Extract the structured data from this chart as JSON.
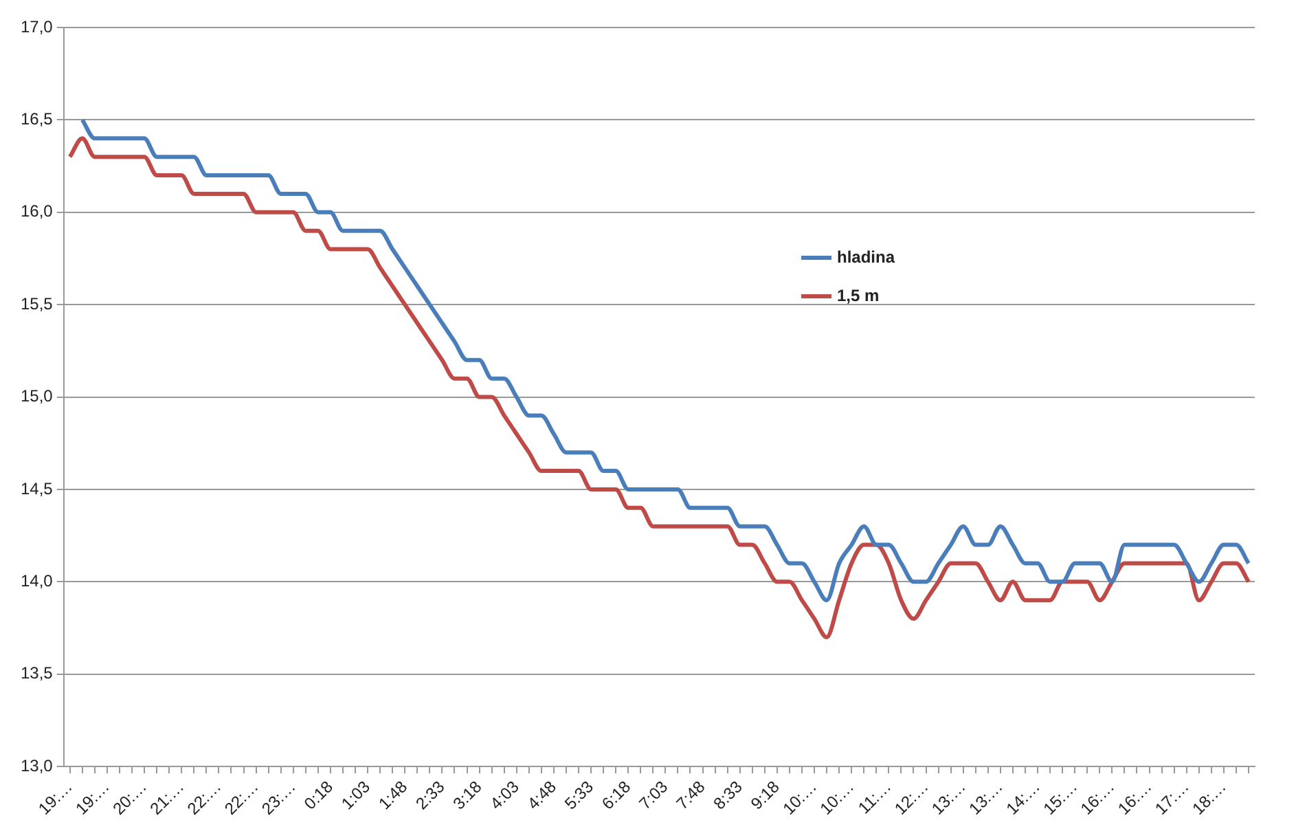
{
  "chart_data": {
    "type": "line",
    "categories": [
      "19:…",
      null,
      null,
      "19:…",
      null,
      null,
      "20:…",
      null,
      null,
      "21:…",
      null,
      null,
      "22:…",
      null,
      null,
      "22:…",
      null,
      null,
      "23:…",
      null,
      null,
      "0:18",
      null,
      null,
      "1:03",
      null,
      null,
      "1:48",
      null,
      null,
      "2:33",
      null,
      null,
      "3:18",
      null,
      null,
      "4:03",
      null,
      null,
      "4:48",
      null,
      null,
      "5:33",
      null,
      null,
      "6:18",
      null,
      null,
      "7:03",
      null,
      null,
      "7:48",
      null,
      null,
      "8:33",
      null,
      null,
      "9:18",
      null,
      null,
      "10:…",
      null,
      null,
      "10:…",
      null,
      null,
      "11:…",
      null,
      null,
      "12:…",
      null,
      null,
      "13:…",
      null,
      null,
      "13:…",
      null,
      null,
      "14:…",
      null,
      null,
      "15:…",
      null,
      null,
      "16:…",
      null,
      null,
      "16:…",
      null,
      null,
      "17:…",
      null,
      null,
      "18:…",
      null,
      null
    ],
    "series": [
      {
        "name": "hladina",
        "color": "#4a7ebb",
        "values": [
          null,
          16.5,
          16.4,
          16.4,
          16.4,
          16.4,
          16.4,
          16.3,
          16.3,
          16.3,
          16.3,
          16.2,
          16.2,
          16.2,
          16.2,
          16.2,
          16.2,
          16.1,
          16.1,
          16.1,
          16.0,
          16.0,
          15.9,
          15.9,
          15.9,
          15.9,
          15.8,
          15.7,
          15.6,
          15.5,
          15.4,
          15.3,
          15.2,
          15.2,
          15.1,
          15.1,
          15.0,
          14.9,
          14.9,
          14.8,
          14.7,
          14.7,
          14.7,
          14.6,
          14.6,
          14.5,
          14.5,
          14.5,
          14.5,
          14.5,
          14.4,
          14.4,
          14.4,
          14.4,
          14.3,
          14.3,
          14.3,
          14.2,
          14.1,
          14.1,
          14.0,
          13.9,
          14.1,
          14.2,
          14.3,
          14.2,
          14.2,
          14.1,
          14.0,
          14.0,
          14.1,
          14.2,
          14.3,
          14.2,
          14.2,
          14.3,
          14.2,
          14.1,
          14.1,
          14.0,
          14.0,
          14.1,
          14.1,
          14.1,
          14.0,
          14.2,
          14.2,
          14.2,
          14.2,
          14.2,
          14.1,
          14.0,
          14.1,
          14.2,
          14.2,
          14.1
        ]
      },
      {
        "name": "1,5 m",
        "color": "#be4b48",
        "values": [
          16.3,
          16.4,
          16.3,
          16.3,
          16.3,
          16.3,
          16.3,
          16.2,
          16.2,
          16.2,
          16.1,
          16.1,
          16.1,
          16.1,
          16.1,
          16.0,
          16.0,
          16.0,
          16.0,
          15.9,
          15.9,
          15.8,
          15.8,
          15.8,
          15.8,
          15.7,
          15.6,
          15.5,
          15.4,
          15.3,
          15.2,
          15.1,
          15.1,
          15.0,
          15.0,
          14.9,
          14.8,
          14.7,
          14.6,
          14.6,
          14.6,
          14.6,
          14.5,
          14.5,
          14.5,
          14.4,
          14.4,
          14.3,
          14.3,
          14.3,
          14.3,
          14.3,
          14.3,
          14.3,
          14.2,
          14.2,
          14.1,
          14.0,
          14.0,
          13.9,
          13.8,
          13.7,
          13.9,
          14.1,
          14.2,
          14.2,
          14.1,
          13.9,
          13.8,
          13.9,
          14.0,
          14.1,
          14.1,
          14.1,
          14.0,
          13.9,
          14.0,
          13.9,
          13.9,
          13.9,
          14.0,
          14.0,
          14.0,
          13.9,
          14.0,
          14.1,
          14.1,
          14.1,
          14.1,
          14.1,
          14.1,
          13.9,
          14.0,
          14.1,
          14.1,
          14.0
        ]
      }
    ],
    "ylim": [
      13,
      17
    ],
    "yticks": [
      {
        "value": 13,
        "label": "13,0"
      },
      {
        "value": 13.5,
        "label": "13,5"
      },
      {
        "value": 14,
        "label": "14,0"
      },
      {
        "value": 14.5,
        "label": "14,5"
      },
      {
        "value": 15,
        "label": "15,0"
      },
      {
        "value": 15.5,
        "label": "15,5"
      },
      {
        "value": 16,
        "label": "16,0"
      },
      {
        "value": 16.5,
        "label": "16,5"
      },
      {
        "value": 17,
        "label": "17,0"
      }
    ],
    "grid": "y",
    "legend": "top right",
    "marker": "none",
    "line_style": "solid"
  }
}
